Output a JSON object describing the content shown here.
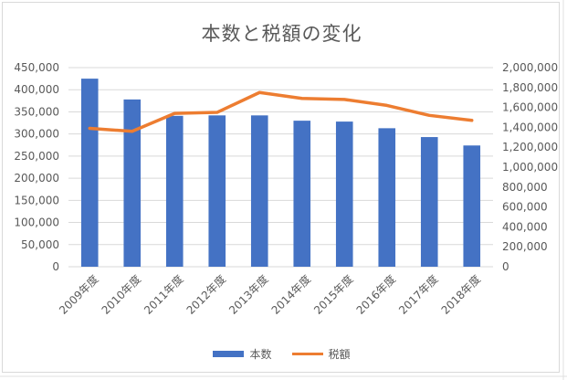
{
  "chart_data": {
    "type": "bar+line",
    "title": "本数と税額の変化",
    "categories": [
      "2009年度",
      "2010年度",
      "2011年度",
      "2012年度",
      "2013年度",
      "2014年度",
      "2015年度",
      "2016年度",
      "2017年度",
      "2018年度"
    ],
    "series": [
      {
        "name": "本数",
        "type": "bar",
        "axis": "left",
        "color": "#4472c4",
        "values": [
          425000,
          378000,
          341000,
          342000,
          342000,
          330000,
          328000,
          313000,
          293000,
          274000
        ]
      },
      {
        "name": "税額",
        "type": "line",
        "axis": "right",
        "color": "#ed7d31",
        "values": [
          1390000,
          1360000,
          1540000,
          1550000,
          1750000,
          1690000,
          1680000,
          1620000,
          1520000,
          1470000
        ]
      }
    ],
    "y_left": {
      "min": 0,
      "max": 450000,
      "step": 50000,
      "tick_labels": [
        "0",
        "50,000",
        "100,000",
        "150,000",
        "200,000",
        "250,000",
        "300,000",
        "350,000",
        "400,000",
        "450,000"
      ]
    },
    "y_right": {
      "min": 0,
      "max": 2000000,
      "step": 200000,
      "tick_labels": [
        "0",
        "200,000",
        "400,000",
        "600,000",
        "800,000",
        "1,000,000",
        "1,200,000",
        "1,400,000",
        "1,600,000",
        "1,800,000",
        "2,000,000"
      ]
    },
    "grid": true,
    "legend": "bottom"
  },
  "colors": {
    "bar": "#4472c4",
    "line": "#ed7d31",
    "grid": "#d9d9d9",
    "text": "#595959"
  }
}
